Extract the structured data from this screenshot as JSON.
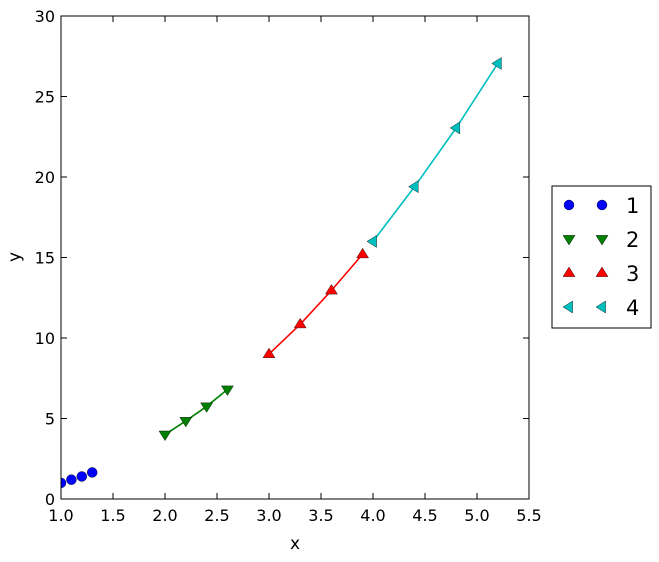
{
  "chart_data": {
    "type": "scatter",
    "xlabel": "x",
    "ylabel": "y",
    "xlim": [
      1.0,
      5.5
    ],
    "ylim": [
      0,
      30
    ],
    "xticks": [
      1.0,
      1.5,
      2.0,
      2.5,
      3.0,
      3.5,
      4.0,
      4.5,
      5.0,
      5.5
    ],
    "xtick_labels": [
      "1.0",
      "1.5",
      "2.0",
      "2.5",
      "3.0",
      "3.5",
      "4.0",
      "4.5",
      "5.0",
      "5.5"
    ],
    "yticks": [
      0,
      5,
      10,
      15,
      20,
      25,
      30
    ],
    "ytick_labels": [
      "0",
      "5",
      "10",
      "15",
      "20",
      "25",
      "30"
    ],
    "grid": false,
    "legend_position": "outside-right",
    "series": [
      {
        "name": "1",
        "marker": "circle",
        "color": "#0000ff",
        "line": false,
        "x": [
          1.0,
          1.1,
          1.2,
          1.3
        ],
        "y": [
          1.0,
          1.2,
          1.4,
          1.65
        ]
      },
      {
        "name": "2",
        "marker": "triangle-down",
        "color": "#008000",
        "line": true,
        "x": [
          2.0,
          2.2,
          2.4,
          2.6
        ],
        "y": [
          4.0,
          4.85,
          5.75,
          6.8
        ]
      },
      {
        "name": "3",
        "marker": "triangle-up",
        "color": "#ff0000",
        "line": true,
        "x": [
          3.0,
          3.3,
          3.6,
          3.9
        ],
        "y": [
          9.0,
          10.85,
          12.95,
          15.2
        ]
      },
      {
        "name": "4",
        "marker": "triangle-left",
        "color": "#00bfbf",
        "line": true,
        "x": [
          4.0,
          4.4,
          4.8,
          5.2
        ],
        "y": [
          16.0,
          19.4,
          23.05,
          27.05
        ]
      }
    ]
  }
}
